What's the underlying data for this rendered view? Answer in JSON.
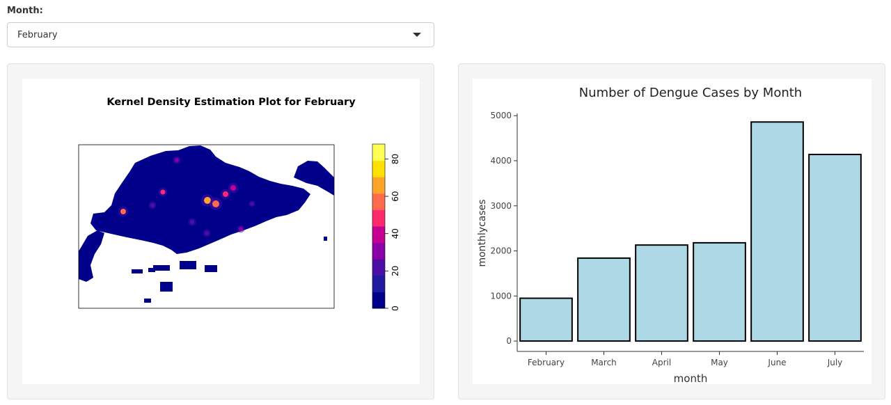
{
  "controls": {
    "month_label": "Month:",
    "selected_month": "February"
  },
  "kde_plot": {
    "title": "Kernel Density Estimation Plot for February",
    "legend_ticks": [
      0,
      20,
      40,
      60,
      80
    ],
    "legend_range": [
      0,
      88
    ],
    "colors": [
      "#00008b",
      "#1f1a9e",
      "#4b0fa6",
      "#8a00a6",
      "#c3008f",
      "#ff2a6d",
      "#ff6b4d",
      "#ffa52c",
      "#ffe100",
      "#ffff55"
    ]
  },
  "chart_data": {
    "type": "bar",
    "title": "Number of Dengue Cases by Month",
    "xlabel": "month",
    "ylabel": "monthlycases",
    "categories": [
      "February",
      "March",
      "April",
      "May",
      "June",
      "July"
    ],
    "values": [
      950,
      1840,
      2130,
      2180,
      4860,
      4140
    ],
    "yticks": [
      0,
      1000,
      2000,
      3000,
      4000,
      5000
    ],
    "ylim": [
      -230,
      5050
    ],
    "bar_color": "#add8e6",
    "bar_edge_color": "#000000"
  }
}
